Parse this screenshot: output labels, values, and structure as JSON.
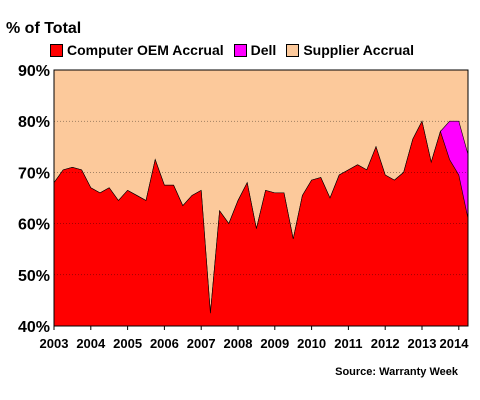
{
  "chart_data": {
    "type": "area",
    "title": "% of Total",
    "source": "Source: Warranty Week",
    "ylim": [
      40,
      90
    ],
    "y_ticks": [
      "40%",
      "50%",
      "60%",
      "70%",
      "80%",
      "90%"
    ],
    "x_ticks": [
      "2003",
      "2004",
      "2005",
      "2006",
      "2007",
      "2008",
      "2009",
      "2010",
      "2011",
      "2012",
      "2013",
      "2014"
    ],
    "grid": true,
    "legend_position": "top",
    "x": [
      2003.0,
      2003.25,
      2003.5,
      2003.75,
      2004.0,
      2004.25,
      2004.5,
      2004.75,
      2005.0,
      2005.25,
      2005.5,
      2005.75,
      2006.0,
      2006.25,
      2006.5,
      2006.75,
      2007.0,
      2007.25,
      2007.5,
      2007.75,
      2008.0,
      2008.25,
      2008.5,
      2008.75,
      2009.0,
      2009.25,
      2009.5,
      2009.75,
      2010.0,
      2010.25,
      2010.5,
      2010.75,
      2011.0,
      2011.25,
      2011.5,
      2011.75,
      2012.0,
      2012.25,
      2012.5,
      2012.75,
      2013.0,
      2013.25,
      2013.5,
      2013.75,
      2014.0,
      2014.25
    ],
    "series": [
      {
        "name": "Computer OEM Accrual",
        "color": "#ff0000",
        "values": [
          68.0,
          70.5,
          71.0,
          70.5,
          67.0,
          66.0,
          67.0,
          64.5,
          66.5,
          65.5,
          64.5,
          72.5,
          67.5,
          67.5,
          63.5,
          65.5,
          66.5,
          42.5,
          62.5,
          60.0,
          64.5,
          68.0,
          59.0,
          66.5,
          66.0,
          66.0,
          57.0,
          65.5,
          68.5,
          69.0,
          65.0,
          69.5,
          70.5,
          71.5,
          70.5,
          75.0,
          69.5,
          68.5,
          70.0,
          76.5,
          80.0,
          72.0,
          78.0,
          72.5,
          69.5,
          61.0
        ]
      },
      {
        "name": "Dell",
        "color": "#ff00ff",
        "values": [
          0,
          0,
          0,
          0,
          0,
          0,
          0,
          0,
          0,
          0,
          0,
          0,
          0,
          0,
          0,
          0,
          0,
          0,
          0,
          0,
          0,
          0,
          0,
          0,
          0,
          0,
          0,
          0,
          0,
          0,
          0,
          0,
          0,
          0,
          0,
          0,
          0,
          0,
          0,
          0,
          0,
          0,
          0,
          7.5,
          10.5,
          12.5
        ]
      },
      {
        "name": "Supplier Accrual",
        "color": "#fcc99b"
      }
    ]
  }
}
